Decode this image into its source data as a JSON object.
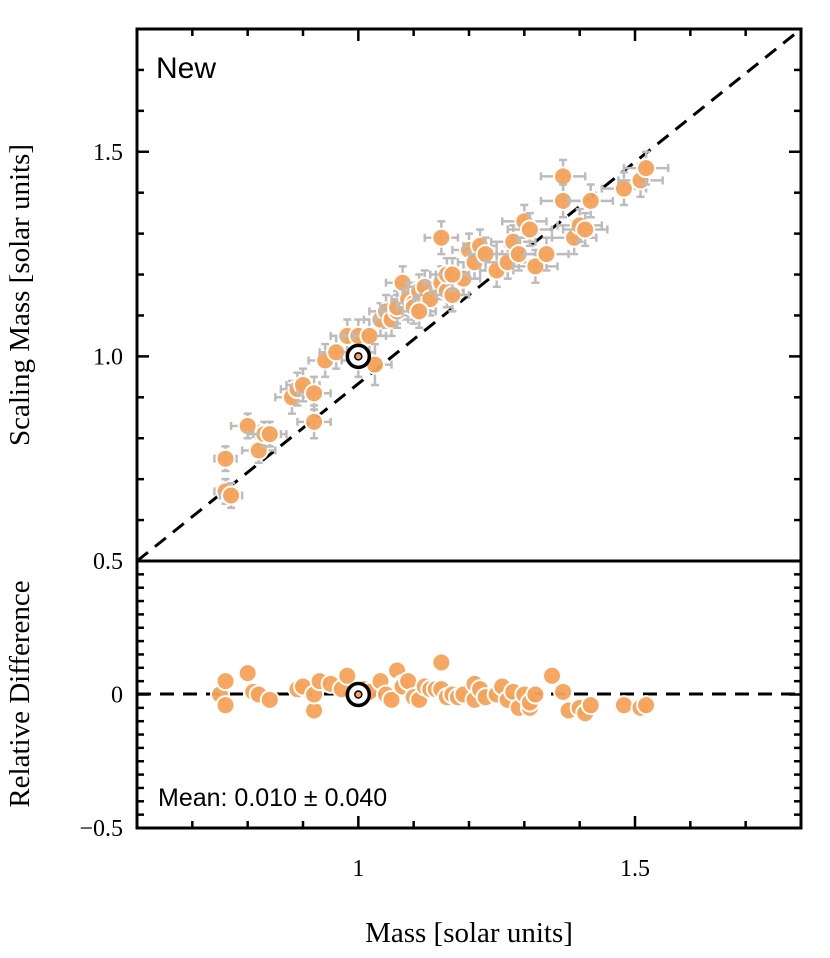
{
  "chart_data": [
    {
      "panel": "main",
      "type": "scatter",
      "title": "New",
      "ylabel": "Scaling Mass [solar units]",
      "xlim": [
        0.6,
        1.8
      ],
      "ylim": [
        0.5,
        1.8
      ],
      "yticks": [
        0.5,
        1.0,
        1.5
      ],
      "ytick_labels": [
        "0.5",
        "1.0",
        "1.5"
      ],
      "reference_line": "y = x (dashed)",
      "highlight_point": {
        "name": "Sun",
        "x": 1.0,
        "y": 1.0
      },
      "series": [
        {
          "name": "stars",
          "color": "#f5a25a",
          "x": [
            0.76,
            0.76,
            0.77,
            0.8,
            0.82,
            0.83,
            0.84,
            0.88,
            0.89,
            0.9,
            0.92,
            0.92,
            0.94,
            0.96,
            0.98,
            1.0,
            1.0,
            1.02,
            1.03,
            1.04,
            1.05,
            1.06,
            1.07,
            1.07,
            1.08,
            1.09,
            1.1,
            1.1,
            1.11,
            1.12,
            1.13,
            1.15,
            1.15,
            1.16,
            1.16,
            1.17,
            1.19,
            1.2,
            1.21,
            1.22,
            1.23,
            1.25,
            1.27,
            1.28,
            1.29,
            1.3,
            1.31,
            1.32,
            1.34,
            1.37,
            1.37,
            1.39,
            1.4,
            1.41,
            1.42,
            1.48,
            1.51,
            1.52,
            1.17,
            1.11
          ],
          "y": [
            0.67,
            0.75,
            0.66,
            0.83,
            0.77,
            0.81,
            0.81,
            0.9,
            0.92,
            0.93,
            0.84,
            0.91,
            0.99,
            1.01,
            1.05,
            0.99,
            1.05,
            1.05,
            0.98,
            1.09,
            1.11,
            1.09,
            1.11,
            1.12,
            1.18,
            1.14,
            1.13,
            1.12,
            1.16,
            1.17,
            1.14,
            1.18,
            1.29,
            1.16,
            1.2,
            1.15,
            1.19,
            1.26,
            1.23,
            1.27,
            1.25,
            1.21,
            1.23,
            1.28,
            1.25,
            1.33,
            1.31,
            1.22,
            1.25,
            1.44,
            1.38,
            1.29,
            1.32,
            1.31,
            1.38,
            1.41,
            1.43,
            1.46,
            1.2,
            1.11
          ],
          "xerr": [
            0.02,
            0.02,
            0.02,
            0.03,
            0.03,
            0.03,
            0.03,
            0.03,
            0.03,
            0.03,
            0.03,
            0.03,
            0.03,
            0.03,
            0.03,
            0.03,
            0.03,
            0.03,
            0.03,
            0.03,
            0.03,
            0.03,
            0.03,
            0.03,
            0.03,
            0.03,
            0.03,
            0.03,
            0.03,
            0.03,
            0.03,
            0.03,
            0.03,
            0.03,
            0.03,
            0.03,
            0.03,
            0.03,
            0.03,
            0.03,
            0.03,
            0.03,
            0.04,
            0.04,
            0.04,
            0.04,
            0.04,
            0.04,
            0.04,
            0.04,
            0.04,
            0.04,
            0.04,
            0.04,
            0.04,
            0.04,
            0.04,
            0.04,
            0.03,
            0.03
          ],
          "yerr": [
            0.03,
            0.03,
            0.03,
            0.03,
            0.03,
            0.03,
            0.03,
            0.04,
            0.04,
            0.04,
            0.04,
            0.04,
            0.04,
            0.04,
            0.04,
            0.04,
            0.04,
            0.04,
            0.05,
            0.04,
            0.04,
            0.04,
            0.04,
            0.04,
            0.04,
            0.04,
            0.04,
            0.04,
            0.04,
            0.04,
            0.04,
            0.04,
            0.04,
            0.04,
            0.04,
            0.04,
            0.04,
            0.04,
            0.04,
            0.04,
            0.04,
            0.04,
            0.04,
            0.04,
            0.04,
            0.04,
            0.04,
            0.04,
            0.04,
            0.04,
            0.04,
            0.04,
            0.04,
            0.04,
            0.04,
            0.04,
            0.04,
            0.04,
            0.04,
            0.04
          ]
        }
      ]
    },
    {
      "panel": "residual",
      "type": "scatter",
      "xlabel": "Mass [solar units]",
      "ylabel": "Relative Difference",
      "xlim": [
        0.6,
        1.8
      ],
      "ylim": [
        -0.5,
        0.5
      ],
      "xticks": [
        1.0,
        1.5
      ],
      "xtick_labels": [
        "1",
        "1.5"
      ],
      "yticks": [
        -0.5,
        0,
        0.5
      ],
      "ytick_labels": [
        "−0.5",
        "0",
        "0.5"
      ],
      "reference_line": "y = 0 (dashed)",
      "annotation": "Mean: 0.010 ± 0.040",
      "highlight_point": {
        "name": "Sun",
        "x": 1.0,
        "y": 0.0
      },
      "series": [
        {
          "name": "stars",
          "color": "#f5a25a",
          "x": [
            0.75,
            0.76,
            0.76,
            0.8,
            0.81,
            0.82,
            0.84,
            0.89,
            0.9,
            0.92,
            0.92,
            0.93,
            0.95,
            0.97,
            0.98,
            1.0,
            1.01,
            1.02,
            1.04,
            1.05,
            1.06,
            1.07,
            1.08,
            1.08,
            1.09,
            1.1,
            1.11,
            1.12,
            1.13,
            1.14,
            1.15,
            1.15,
            1.16,
            1.17,
            1.18,
            1.19,
            1.21,
            1.21,
            1.22,
            1.23,
            1.25,
            1.26,
            1.27,
            1.28,
            1.29,
            1.3,
            1.31,
            1.31,
            1.32,
            1.35,
            1.37,
            1.38,
            1.4,
            1.41,
            1.42,
            1.48,
            1.51,
            1.52
          ],
          "y": [
            0.0,
            -0.04,
            0.05,
            0.08,
            0.01,
            0.0,
            -0.02,
            0.02,
            0.03,
            -0.06,
            0.0,
            0.05,
            0.04,
            0.02,
            0.07,
            0.0,
            0.02,
            0.01,
            0.05,
            0.0,
            -0.02,
            0.09,
            0.04,
            0.03,
            0.05,
            -0.01,
            -0.02,
            0.03,
            0.02,
            0.02,
            0.12,
            0.02,
            -0.01,
            0.0,
            -0.01,
            0.0,
            0.04,
            -0.02,
            0.02,
            -0.01,
            0.0,
            0.03,
            -0.02,
            0.01,
            -0.05,
            0.0,
            -0.05,
            -0.03,
            0.0,
            0.07,
            0.01,
            -0.06,
            -0.05,
            -0.07,
            -0.04,
            -0.04,
            -0.05,
            -0.04
          ]
        }
      ]
    }
  ]
}
